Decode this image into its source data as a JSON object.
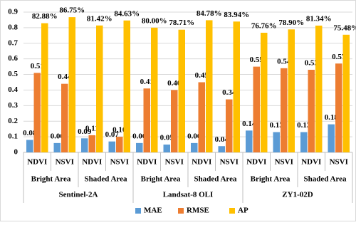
{
  "chart_data": {
    "type": "bar",
    "categories": [
      "NDVI",
      "NSVI",
      "NDVI",
      "NSVI",
      "NDVI",
      "NSVI",
      "NDVI",
      "NSVI",
      "NDVI",
      "NSVI",
      "NDVI",
      "NSVI"
    ],
    "subgroups": [
      "Bright Area",
      "Shaded Area",
      "Bright Area",
      "Shaded Area",
      "Bright Area",
      "Shaded Area"
    ],
    "groups": [
      "Sentinel-2A",
      "Landsat-8 OLI",
      "ZY1-02D"
    ],
    "series": [
      {
        "name": "MAE",
        "color": "#5b9bd5",
        "values": [
          0.08,
          0.06,
          0.09,
          0.07,
          0.06,
          0.05,
          0.06,
          0.04,
          0.14,
          0.13,
          0.13,
          0.18
        ],
        "value_labels": [
          "0.08",
          "0.06",
          "0.09",
          "0.07",
          "0.06",
          "0.05",
          "0.06",
          "0.04",
          "0.14",
          "0.13",
          "0.13",
          "0.18"
        ]
      },
      {
        "name": "RMSE",
        "color": "#ed7d31",
        "values": [
          0.51,
          0.44,
          0.11,
          0.1,
          0.41,
          0.4,
          0.45,
          0.34,
          0.55,
          0.54,
          0.53,
          0.57
        ],
        "value_labels": [
          "0.51",
          "0.44",
          "0.11",
          "0.10",
          "0.41",
          "0.40",
          "0.45",
          "0.34",
          "0.55",
          "0.54",
          "0.53",
          "0.57"
        ]
      },
      {
        "name": "AP",
        "color": "#ffc000",
        "values": [
          0.8288,
          0.8675,
          0.8142,
          0.8463,
          0.8,
          0.7871,
          0.8478,
          0.8394,
          0.7676,
          0.789,
          0.8134,
          0.7548
        ],
        "value_labels": [
          "82.88%",
          "86.75%",
          "81.42%",
          "84.63%",
          "80.00%",
          "78.71%",
          "84.78%",
          "83.94%",
          "76.76%",
          "78.90%",
          "81.34%",
          "75.48%"
        ]
      }
    ],
    "ylim": [
      0,
      0.9
    ],
    "yticks": [
      0,
      0.1,
      0.2,
      0.3,
      0.4,
      0.5,
      0.6,
      0.7,
      0.8,
      0.9
    ],
    "grid": true,
    "legend": "bottom"
  }
}
